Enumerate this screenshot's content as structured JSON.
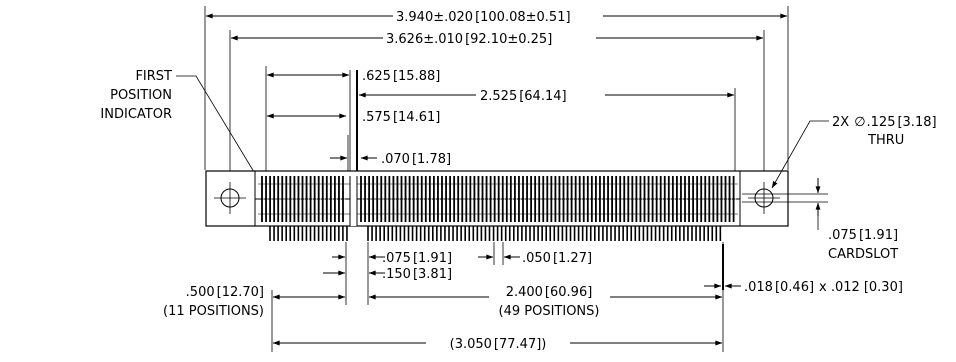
{
  "dims": {
    "overall": "3.940±.020",
    "overall_mm": "[100.08±0.51]",
    "hole_spacing": "3.626±.010",
    "hole_spacing_mm": "[92.10±0.25]",
    "d_0625": ".625",
    "d_0625_mm": "[15.88]",
    "d_2525": "2.525",
    "d_2525_mm": "[64.14]",
    "d_0575": ".575",
    "d_0575_mm": "[14.61]",
    "key_width": ".070",
    "key_width_mm": "[1.78]",
    "pitch_075": ".075",
    "pitch_075_mm": "[1.91]",
    "pitch_050": ".050",
    "pitch_050_mm": "[1.27]",
    "d_0150": ".150",
    "d_0150_mm": "[3.81]",
    "left_span": ".500",
    "left_span_mm": "[12.70]",
    "left_positions": "(11 POSITIONS)",
    "right_span": "2.400",
    "right_span_mm": "[60.96]",
    "right_positions": "(49 POSITIONS)",
    "total_span": "3.050",
    "total_span_mm": "[77.47]",
    "pin_size": ".018",
    "pin_size_mm": "[0.46]",
    "pin_size_x": "x .012",
    "pin_size_x_mm": "[0.30]",
    "hole_prefix": "2X",
    "hole_symbol": "∅",
    "hole_dia": ".125",
    "hole_dia_mm": "[3.18]",
    "hole_thru": "THRU",
    "cardslot": ".075",
    "cardslot_mm": "[1.91]",
    "cardslot_label": "CARDSLOT"
  },
  "labels": {
    "first_line1": "FIRST",
    "first_line2": "POSITION",
    "first_line3": "INDICATOR"
  }
}
